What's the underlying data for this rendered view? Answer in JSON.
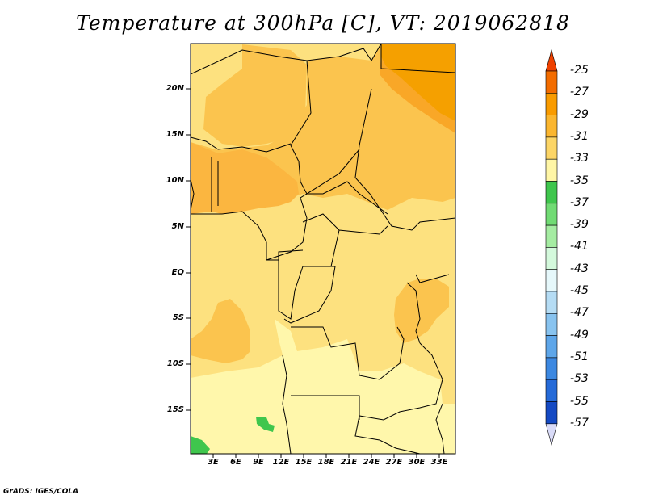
{
  "title": "Temperature at 300hPa [C], VT: 2019062818",
  "credit": "GrADS: IGES/COLA",
  "map": {
    "lat_labels": [
      "20N",
      "15N",
      "10N",
      "5N",
      "EQ",
      "5S",
      "10S",
      "15S"
    ],
    "lon_labels": [
      "3E",
      "6E",
      "9E",
      "12E",
      "15E",
      "18E",
      "21E",
      "24E",
      "27E",
      "30E",
      "33E"
    ],
    "fill_colors": {
      "c25_27": "#f08c00",
      "c27_29": "#fba71f",
      "c29_31": "#fbc44e",
      "c31_33": "#fde17f",
      "c33_35": "#fff7ab",
      "c35_37": "#3fc64d"
    }
  },
  "colorbar": {
    "labels": [
      "-25",
      "-27",
      "-29",
      "-31",
      "-33",
      "-35",
      "-37",
      "-39",
      "-41",
      "-43",
      "-45",
      "-47",
      "-49",
      "-51",
      "-53",
      "-55",
      "-57"
    ],
    "colors": [
      "#ee4100",
      "#f36c00",
      "#f99b00",
      "#fbb62f",
      "#fcd566",
      "#fff6a6",
      "#3fc64d",
      "#71db74",
      "#a5eca2",
      "#d4f9dc",
      "#e6f8fb",
      "#b5dcf4",
      "#88c3ef",
      "#5ea6e9",
      "#3c88e1",
      "#256ad8",
      "#1449c3",
      "#0a2896",
      "#0c0c69",
      "#d9dbf8"
    ]
  }
}
